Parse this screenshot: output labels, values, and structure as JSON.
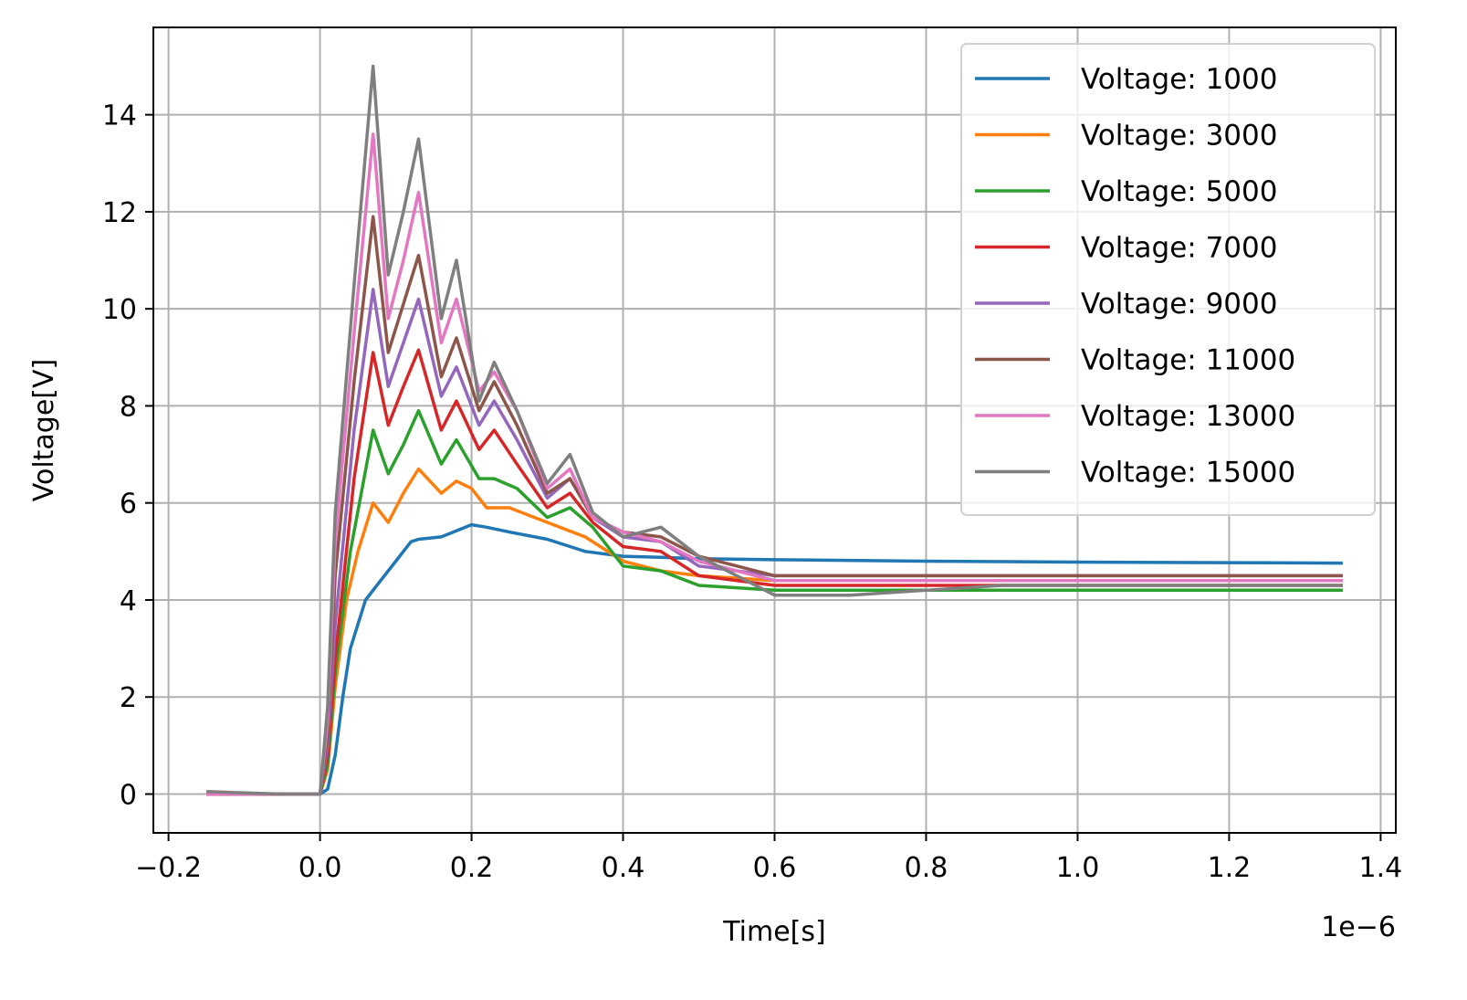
{
  "chart_data": {
    "type": "line",
    "title": "",
    "xlabel": "Time[s]",
    "ylabel": "Voltage[V]",
    "x_offset_text": "1e−6",
    "xlim": [
      -0.22,
      1.42
    ],
    "ylim": [
      -0.8,
      15.8
    ],
    "x_ticks": [
      -0.2,
      0.0,
      0.2,
      0.4,
      0.6,
      0.8,
      1.0,
      1.2,
      1.4
    ],
    "x_tick_labels": [
      "−0.2",
      "0.0",
      "0.2",
      "0.4",
      "0.6",
      "0.8",
      "1.0",
      "1.2",
      "1.4"
    ],
    "y_ticks": [
      0,
      2,
      4,
      6,
      8,
      10,
      12,
      14
    ],
    "y_tick_labels": [
      "0",
      "2",
      "4",
      "6",
      "8",
      "10",
      "12",
      "14"
    ],
    "grid": true,
    "legend_position": "top-right",
    "series": [
      {
        "name": "Voltage: 1000",
        "color": "#1f77b4",
        "x": [
          -0.15,
          -0.1,
          -0.05,
          0.0,
          0.01,
          0.02,
          0.03,
          0.04,
          0.06,
          0.08,
          0.1,
          0.12,
          0.13,
          0.16,
          0.2,
          0.22,
          0.25,
          0.3,
          0.35,
          0.4,
          0.45,
          0.5,
          0.6,
          0.8,
          1.0,
          1.2,
          1.35
        ],
        "y": [
          0.0,
          0.0,
          0.0,
          0.0,
          0.1,
          0.8,
          2.0,
          3.0,
          4.0,
          4.4,
          4.8,
          5.2,
          5.25,
          5.3,
          5.55,
          5.5,
          5.4,
          5.25,
          5.0,
          4.9,
          4.88,
          4.85,
          4.83,
          4.8,
          4.78,
          4.77,
          4.76
        ]
      },
      {
        "name": "Voltage: 3000",
        "color": "#ff7f0e",
        "x": [
          -0.15,
          -0.05,
          0.0,
          0.01,
          0.02,
          0.035,
          0.05,
          0.07,
          0.09,
          0.11,
          0.13,
          0.16,
          0.18,
          0.2,
          0.22,
          0.25,
          0.3,
          0.35,
          0.4,
          0.45,
          0.5,
          0.6,
          0.8,
          1.0,
          1.2,
          1.35
        ],
        "y": [
          0.0,
          0.0,
          0.0,
          0.5,
          2.2,
          4.0,
          5.0,
          6.0,
          5.6,
          6.2,
          6.7,
          6.2,
          6.45,
          6.3,
          5.9,
          5.9,
          5.6,
          5.3,
          4.8,
          4.6,
          4.5,
          4.4,
          4.4,
          4.4,
          4.4,
          4.4
        ]
      },
      {
        "name": "Voltage: 5000",
        "color": "#2ca02c",
        "x": [
          -0.15,
          -0.05,
          0.0,
          0.01,
          0.02,
          0.04,
          0.07,
          0.09,
          0.11,
          0.13,
          0.16,
          0.18,
          0.21,
          0.23,
          0.26,
          0.3,
          0.33,
          0.36,
          0.4,
          0.45,
          0.5,
          0.6,
          0.8,
          1.0,
          1.2,
          1.35
        ],
        "y": [
          0.0,
          0.0,
          0.0,
          0.6,
          2.5,
          5.0,
          7.5,
          6.6,
          7.2,
          7.9,
          6.8,
          7.3,
          6.5,
          6.5,
          6.3,
          5.7,
          5.9,
          5.5,
          4.7,
          4.6,
          4.3,
          4.2,
          4.2,
          4.2,
          4.2,
          4.2
        ]
      },
      {
        "name": "Voltage: 7000",
        "color": "#d62728",
        "x": [
          -0.15,
          -0.05,
          0.0,
          0.01,
          0.02,
          0.045,
          0.07,
          0.09,
          0.11,
          0.13,
          0.16,
          0.18,
          0.21,
          0.23,
          0.26,
          0.3,
          0.33,
          0.36,
          0.4,
          0.45,
          0.5,
          0.6,
          0.8,
          1.0,
          1.2,
          1.35
        ],
        "y": [
          0.0,
          0.0,
          0.0,
          0.8,
          2.8,
          6.5,
          9.1,
          7.6,
          8.4,
          9.15,
          7.5,
          8.1,
          7.1,
          7.5,
          6.8,
          5.9,
          6.2,
          5.6,
          5.1,
          5.0,
          4.5,
          4.3,
          4.3,
          4.3,
          4.3,
          4.3
        ]
      },
      {
        "name": "Voltage: 9000",
        "color": "#9467bd",
        "x": [
          -0.15,
          -0.05,
          0.0,
          0.01,
          0.02,
          0.045,
          0.07,
          0.09,
          0.11,
          0.13,
          0.16,
          0.18,
          0.21,
          0.23,
          0.26,
          0.3,
          0.33,
          0.36,
          0.4,
          0.45,
          0.5,
          0.6,
          0.8,
          1.0,
          1.2,
          1.35
        ],
        "y": [
          0.0,
          0.0,
          0.0,
          1.0,
          3.5,
          7.5,
          10.4,
          8.4,
          9.3,
          10.2,
          8.2,
          8.8,
          7.6,
          8.1,
          7.3,
          6.1,
          6.5,
          5.7,
          5.3,
          5.2,
          4.7,
          4.5,
          4.5,
          4.5,
          4.5,
          4.5
        ]
      },
      {
        "name": "Voltage: 11000",
        "color": "#8c564b",
        "x": [
          -0.15,
          -0.05,
          0.0,
          0.01,
          0.02,
          0.045,
          0.07,
          0.09,
          0.11,
          0.13,
          0.16,
          0.18,
          0.21,
          0.23,
          0.26,
          0.3,
          0.33,
          0.36,
          0.4,
          0.45,
          0.5,
          0.6,
          0.8,
          1.0,
          1.2,
          1.35
        ],
        "y": [
          0.0,
          0.0,
          0.0,
          1.2,
          4.5,
          8.5,
          11.9,
          9.1,
          10.1,
          11.1,
          8.6,
          9.4,
          7.9,
          8.5,
          7.6,
          6.2,
          6.5,
          5.7,
          5.4,
          5.3,
          4.9,
          4.5,
          4.5,
          4.5,
          4.5,
          4.5
        ]
      },
      {
        "name": "Voltage: 13000",
        "color": "#e377c2",
        "x": [
          -0.15,
          -0.05,
          0.0,
          0.01,
          0.02,
          0.045,
          0.07,
          0.09,
          0.11,
          0.13,
          0.16,
          0.18,
          0.21,
          0.23,
          0.26,
          0.3,
          0.33,
          0.36,
          0.4,
          0.45,
          0.5,
          0.6,
          0.8,
          1.0,
          1.2,
          1.35
        ],
        "y": [
          0.0,
          0.0,
          0.0,
          1.5,
          5.2,
          9.5,
          13.6,
          9.8,
          11.0,
          12.4,
          9.3,
          10.2,
          8.3,
          8.7,
          7.9,
          6.3,
          6.7,
          5.7,
          5.4,
          5.2,
          4.8,
          4.4,
          4.4,
          4.4,
          4.4,
          4.4
        ]
      },
      {
        "name": "Voltage: 15000",
        "color": "#7f7f7f",
        "x": [
          -0.15,
          -0.05,
          0.0,
          0.01,
          0.02,
          0.045,
          0.07,
          0.09,
          0.11,
          0.13,
          0.16,
          0.18,
          0.21,
          0.23,
          0.26,
          0.3,
          0.33,
          0.36,
          0.4,
          0.45,
          0.5,
          0.6,
          0.7,
          0.8,
          0.9,
          1.0,
          1.2,
          1.35
        ],
        "y": [
          0.05,
          0.0,
          0.0,
          1.8,
          5.8,
          10.5,
          15.0,
          10.7,
          12.0,
          13.5,
          9.8,
          11.0,
          8.1,
          8.9,
          7.9,
          6.4,
          7.0,
          5.8,
          5.3,
          5.5,
          4.9,
          4.1,
          4.1,
          4.2,
          4.3,
          4.3,
          4.3,
          4.3
        ]
      }
    ]
  }
}
